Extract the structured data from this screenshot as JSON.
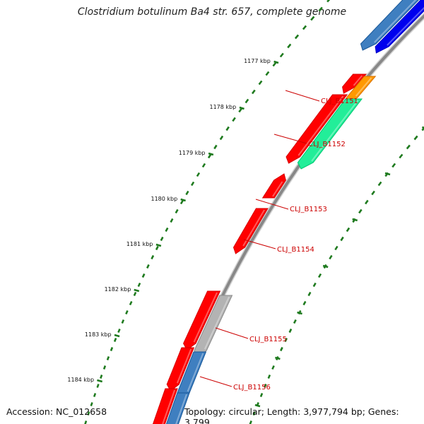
{
  "header": {
    "title": "Clostridium botulinum Ba4 str. 657, complete genome"
  },
  "footer": {
    "accession": "Accession: NC_012658",
    "summary": "Topology: circular; Length: 3,977,794 bp; Genes: 3,799"
  },
  "colors": {
    "backbone": "#888888",
    "ruler_ticks": "#1e7a1e",
    "label_text": "#cc0000",
    "gene_red": "#ff0000",
    "gene_orange": "#ff9900",
    "gene_green": "#22ee99",
    "gene_steelblue": "#3f7fc0",
    "gene_blue": "#0000ee",
    "gene_gray": "#b3b3b3"
  },
  "ruler": {
    "tick_labels": [
      "1177 kbp",
      "1178 kbp",
      "1179 kbp",
      "1180 kbp",
      "1181 kbp",
      "1182 kbp",
      "1183 kbp",
      "1184 kbp"
    ]
  },
  "labeled_genes": [
    {
      "name": "CLJ_B1151"
    },
    {
      "name": "CLJ_B1152"
    },
    {
      "name": "CLJ_B1153"
    },
    {
      "name": "CLJ_B1154"
    },
    {
      "name": "CLJ_B1155"
    },
    {
      "name": "CLJ_B1156"
    }
  ]
}
